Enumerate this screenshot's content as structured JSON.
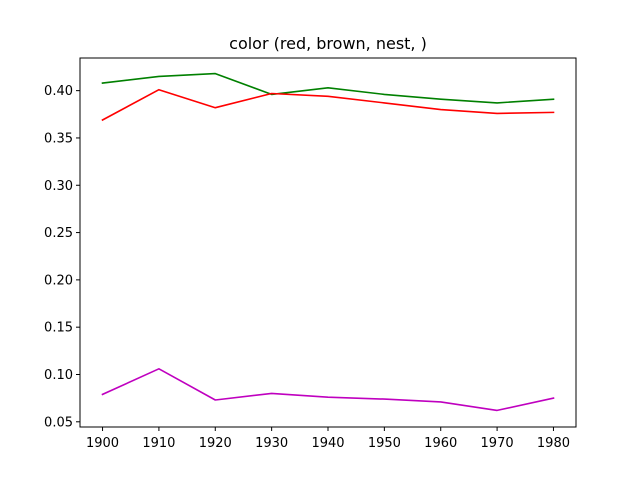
{
  "chart_data": {
    "type": "line",
    "title": "color (red, brown, nest, )",
    "xlabel": "",
    "ylabel": "",
    "x": [
      1900,
      1910,
      1920,
      1930,
      1940,
      1950,
      1960,
      1970,
      1980
    ],
    "x_ticks": [
      "1900",
      "1910",
      "1920",
      "1930",
      "1940",
      "1950",
      "1960",
      "1970",
      "1980"
    ],
    "y_ticks": [
      "0.05",
      "0.10",
      "0.15",
      "0.20",
      "0.25",
      "0.30",
      "0.35",
      "0.40"
    ],
    "xlim": [
      1896,
      1984
    ],
    "ylim": [
      0.0445,
      0.4345
    ],
    "grid": false,
    "legend": "none",
    "series": [
      {
        "color": "#008000",
        "values": [
          0.408,
          0.415,
          0.418,
          0.396,
          0.403,
          0.396,
          0.391,
          0.387,
          0.391
        ]
      },
      {
        "color": "#ff0000",
        "values": [
          0.369,
          0.401,
          0.382,
          0.397,
          0.394,
          0.387,
          0.38,
          0.376,
          0.377
        ]
      },
      {
        "color": "#bf00bf",
        "values": [
          0.079,
          0.106,
          0.073,
          0.08,
          0.076,
          0.074,
          0.071,
          0.062,
          0.075
        ]
      }
    ]
  }
}
